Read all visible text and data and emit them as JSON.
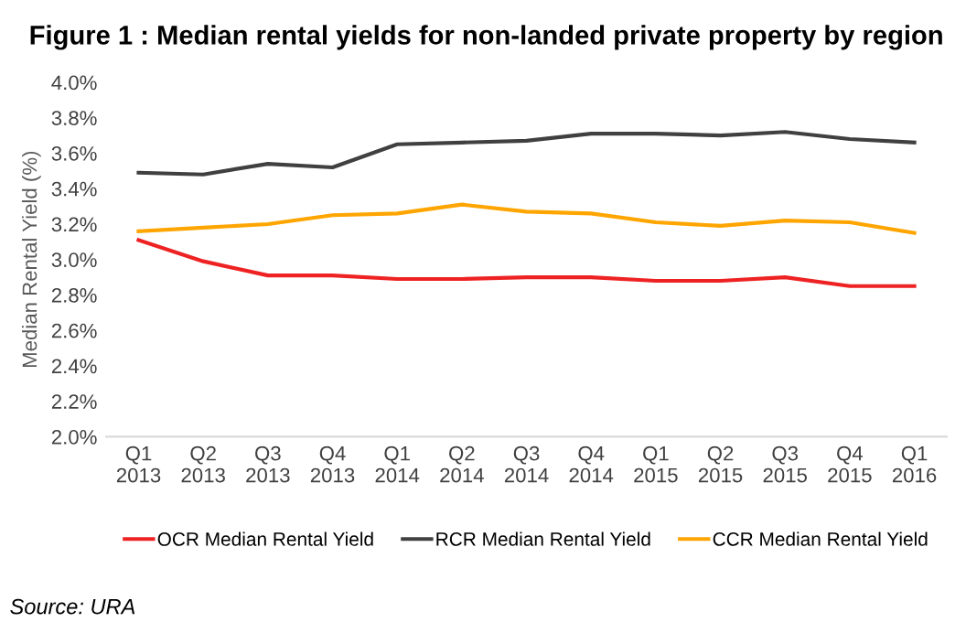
{
  "chart_data": {
    "type": "line",
    "title": "Figure 1 : Median rental yields for non-landed private property by region",
    "ylabel": "Median Rental Yield (%)",
    "categories": [
      "Q1\n2013",
      "Q2\n2013",
      "Q3\n2013",
      "Q4\n2013",
      "Q1\n2014",
      "Q2\n2014",
      "Q3\n2014",
      "Q4\n2014",
      "Q1\n2015",
      "Q2\n2015",
      "Q3\n2015",
      "Q4\n2015",
      "Q1\n2016"
    ],
    "series": [
      {
        "name": "OCR Median Rental Yield",
        "color": "#ee2222",
        "values": [
          3.11,
          2.99,
          2.91,
          2.91,
          2.89,
          2.89,
          2.9,
          2.9,
          2.88,
          2.88,
          2.9,
          2.85,
          2.85
        ]
      },
      {
        "name": "RCR Median Rental Yield",
        "color": "#404040",
        "values": [
          3.49,
          3.48,
          3.54,
          3.52,
          3.65,
          3.66,
          3.67,
          3.71,
          3.71,
          3.7,
          3.72,
          3.68,
          3.66
        ]
      },
      {
        "name": "CCR Median Rental Yield",
        "color": "#ffa500",
        "values": [
          3.16,
          3.18,
          3.2,
          3.25,
          3.26,
          3.31,
          3.27,
          3.26,
          3.21,
          3.19,
          3.22,
          3.21,
          3.15
        ]
      }
    ],
    "ylim": [
      2.0,
      4.0
    ],
    "yticks": [
      {
        "value": 2.0,
        "label": "2.0%"
      },
      {
        "value": 2.2,
        "label": "2.2%"
      },
      {
        "value": 2.4,
        "label": "2.4%"
      },
      {
        "value": 2.6,
        "label": "2.6%"
      },
      {
        "value": 2.8,
        "label": "2.8%"
      },
      {
        "value": 3.0,
        "label": "3.0%"
      },
      {
        "value": 3.2,
        "label": "3.2%"
      },
      {
        "value": 3.4,
        "label": "3.4%"
      },
      {
        "value": 3.6,
        "label": "3.6%"
      },
      {
        "value": 3.8,
        "label": "3.8%"
      },
      {
        "value": 4.0,
        "label": "4.0%"
      }
    ],
    "grid": false,
    "legend": "bottom",
    "marker": "none",
    "line_style": "solid",
    "annotations": [
      "Source: URA"
    ]
  }
}
